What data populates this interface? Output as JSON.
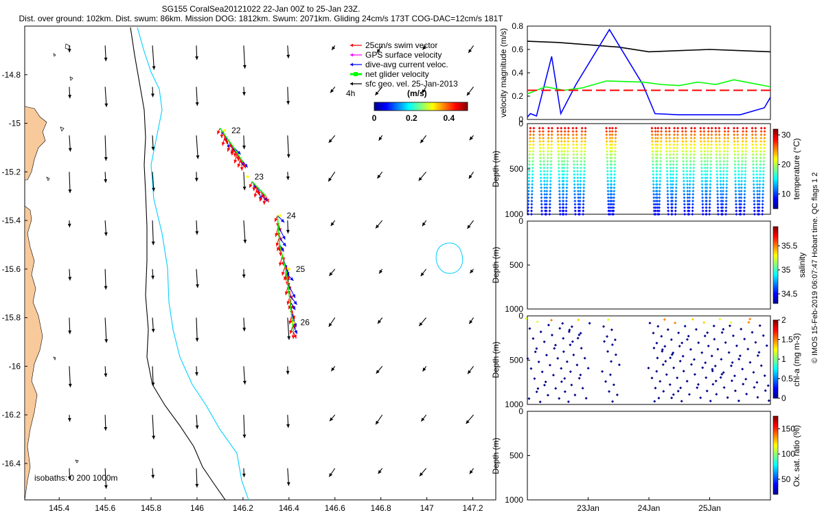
{
  "header": {
    "title": "SG155 CoralSea20121022 22-Jan 00Z to 25-Jan 23Z.",
    "stats": "Dist. over ground: 102km. Dist. swum: 86km. Mission DOG: 1812km. Swum: 2071km. Gliding 24cm/s 173T COG-DAC=12cm/s 181T"
  },
  "footer_credit": "© IMOS 15-Feb-2019 06:07:47 Hobart time. QC flags 1 2",
  "colors": {
    "land": "#f8c99a",
    "isobath_200": "#000000",
    "isobath_1000": "#00cfff",
    "swim_vector": "#ff0000",
    "gps_velocity": "#ff00ff",
    "dac_velocity": "#0000ff",
    "net_velocity": "#00ff00",
    "sfc_geo_velocity": "#000000"
  },
  "chart_data": [
    {
      "type": "scatter",
      "panel": "map",
      "x": {
        "ticks": [
          145.4,
          145.6,
          145.8,
          146,
          146.2,
          146.4,
          146.6,
          146.8,
          147,
          147.2
        ],
        "range": [
          145.25,
          147.3
        ]
      },
      "y": {
        "ticks": [
          -14.8,
          -15,
          -15.2,
          -15.4,
          -15.6,
          -15.8,
          -16,
          -16.2,
          -16.4
        ],
        "range": [
          -16.55,
          -14.6
        ]
      },
      "legend": {
        "position": "top-right",
        "entries": [
          {
            "label": "25cm/s swim vector",
            "color": "#ff0000"
          },
          {
            "label": "GPS surface velocity",
            "color": "#ff00ff"
          },
          {
            "label": "dive-avg current veloc.",
            "color": "#0000ff"
          },
          {
            "label": "net glider velocity",
            "color": "#00ff00"
          },
          {
            "label": "sfc geo. vel. 25-Jan-2013",
            "color": "#000000"
          }
        ]
      },
      "colorbar": {
        "label": "(m/s)",
        "note": "4h",
        "ticks": [
          "0",
          "0.2",
          "0.4"
        ],
        "range": [
          0,
          0.5
        ]
      },
      "isobaths_label": "isobaths: 0   200  1000m",
      "track": {
        "day_labels": [
          "22",
          "23",
          "24",
          "25",
          "26"
        ],
        "day_positions": [
          [
            146.12,
            -15.03
          ],
          [
            146.22,
            -15.22
          ],
          [
            146.36,
            -15.38
          ],
          [
            146.4,
            -15.6
          ],
          [
            146.42,
            -15.82
          ]
        ]
      },
      "current_vectors": {
        "lons": [
          145.45,
          145.6,
          145.8,
          146.0,
          146.2,
          146.4,
          146.6,
          146.8,
          147.0,
          147.2
        ],
        "lats": [
          -14.68,
          -14.85,
          -15.05,
          -15.2,
          -15.4,
          -15.6,
          -15.8,
          -16.0,
          -16.2,
          -16.42
        ]
      }
    },
    {
      "type": "line",
      "panel": "velocity",
      "ylabel": "velocity magnitude (m/s)",
      "y": {
        "ticks": [
          "0",
          "0.2",
          "0.4",
          "0.6",
          "0.8"
        ],
        "range": [
          0,
          0.8
        ]
      },
      "x": {
        "ticks": [
          "23Jan",
          "24Jan",
          "25Jan"
        ],
        "range_days": [
          22.0,
          26.0
        ]
      },
      "series": [
        {
          "color": "#000000",
          "t": [
            22.0,
            22.5,
            23.0,
            23.5,
            24.0,
            24.5,
            25.0,
            25.5,
            26.0
          ],
          "values": [
            0.67,
            0.66,
            0.64,
            0.62,
            0.58,
            0.59,
            0.6,
            0.59,
            0.58
          ]
        },
        {
          "color": "#0000ff",
          "t": [
            22.0,
            22.05,
            22.15,
            22.4,
            22.55,
            22.8,
            23.35,
            23.9,
            24.1,
            24.5,
            25.0,
            25.5,
            25.9,
            26.0
          ],
          "values": [
            0.02,
            0.05,
            0.03,
            0.54,
            0.05,
            0.3,
            0.77,
            0.3,
            0.05,
            0.04,
            0.04,
            0.04,
            0.1,
            0.19
          ]
        },
        {
          "color": "#00ff00",
          "t": [
            22.0,
            22.3,
            22.6,
            22.9,
            23.3,
            23.9,
            24.2,
            24.5,
            24.8,
            25.1,
            25.4,
            25.7,
            26.0
          ],
          "values": [
            0.22,
            0.28,
            0.25,
            0.27,
            0.33,
            0.32,
            0.3,
            0.29,
            0.32,
            0.3,
            0.34,
            0.31,
            0.28
          ]
        },
        {
          "color": "#ff0000",
          "t": [
            22.0,
            22.5,
            23.0,
            23.5,
            24.0,
            24.5,
            25.0,
            25.5,
            26.0
          ],
          "values": [
            0.25,
            0.25,
            0.25,
            0.25,
            0.25,
            0.25,
            0.25,
            0.25,
            0.25
          ]
        }
      ]
    },
    {
      "type": "scatter",
      "panel": "temperature",
      "ylabel": "Depth (m)",
      "y": {
        "ticks": [
          "0",
          "500",
          "1000"
        ],
        "range": [
          0,
          1000
        ],
        "reversed": true
      },
      "colorbar": {
        "label": "temperature (°C)",
        "ticks": [
          "10",
          "20",
          "30"
        ],
        "range": [
          5,
          32
        ]
      },
      "dive_times": [
        22.05,
        22.2,
        22.35,
        22.5,
        22.62,
        22.75,
        22.9,
        23.3,
        23.4,
        24.05,
        24.15,
        24.28,
        24.42,
        24.55,
        24.7,
        24.85,
        24.98,
        25.1,
        25.25,
        25.4,
        25.55,
        25.7,
        25.85
      ]
    },
    {
      "type": "scatter",
      "panel": "salinity",
      "ylabel": "Depth (m)",
      "y": {
        "ticks": [
          "0",
          "500",
          "1000"
        ],
        "range": [
          0,
          1000
        ],
        "reversed": true
      },
      "colorbar": {
        "label": "salinity",
        "ticks": [
          "34.5",
          "35",
          "35.5"
        ],
        "range": [
          34.3,
          35.9
        ]
      }
    },
    {
      "type": "scatter",
      "panel": "chlorophyll",
      "ylabel": "Depth (m)",
      "y": {
        "ticks": [
          "0",
          "500",
          "1000"
        ],
        "range": [
          0,
          1000
        ],
        "reversed": true
      },
      "colorbar": {
        "label": "chl-a (mg m-3)",
        "ticks": [
          "0",
          "0.5",
          "1",
          "1.5",
          "2"
        ],
        "range": [
          0,
          2
        ]
      }
    },
    {
      "type": "scatter",
      "panel": "oxygen",
      "ylabel": "Depth (m)",
      "y": {
        "ticks": [
          "0",
          "500",
          "1000"
        ],
        "range": [
          0,
          1000
        ],
        "reversed": true
      },
      "colorbar": {
        "label": "Ox. sat. ratio (%)",
        "ticks": [
          "50",
          "100",
          "150"
        ],
        "range": [
          20,
          175
        ]
      },
      "x": {
        "ticks": [
          "23Jan",
          "24Jan",
          "25Jan"
        ],
        "range_days": [
          22.0,
          26.0
        ]
      }
    }
  ]
}
